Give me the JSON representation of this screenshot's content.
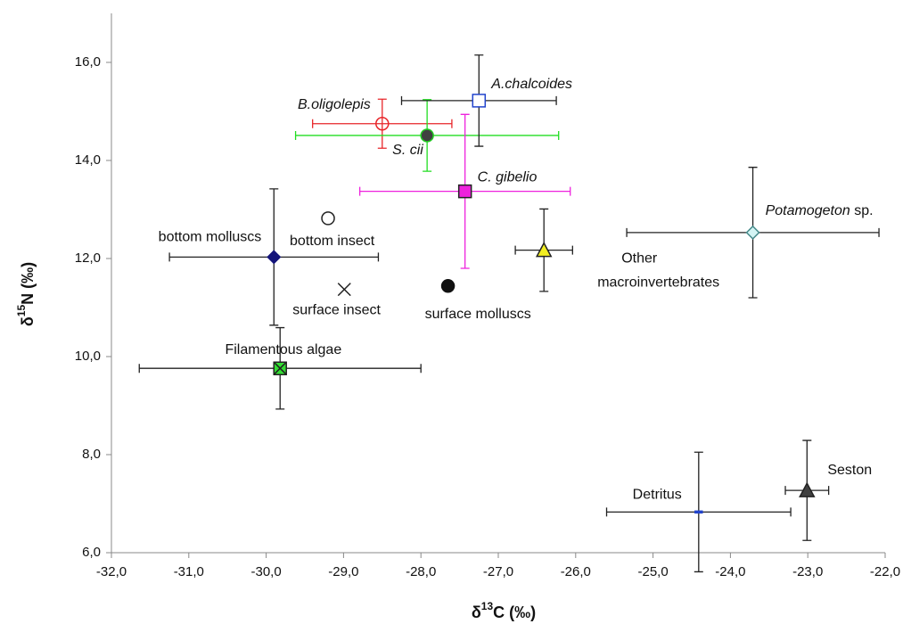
{
  "chart_data": {
    "type": "scatter",
    "x_label": {
      "prefix": "δ",
      "sup": "13",
      "suffix": "C (‰)"
    },
    "y_label": {
      "prefix": "δ",
      "sup": "15",
      "suffix": "N (‰)"
    },
    "xlim": [
      -32,
      -22
    ],
    "ylim": [
      6,
      17
    ],
    "xticks": [
      {
        "value": -32,
        "label": "-32,0"
      },
      {
        "value": -31,
        "label": "-31,0"
      },
      {
        "value": -30,
        "label": "-30,0"
      },
      {
        "value": -29,
        "label": "-29,0"
      },
      {
        "value": -28,
        "label": "-28,0"
      },
      {
        "value": -27,
        "label": "-27,0"
      },
      {
        "value": -26,
        "label": "-26,0"
      },
      {
        "value": -25,
        "label": "-25,0"
      },
      {
        "value": -24,
        "label": "-24,0"
      },
      {
        "value": -23,
        "label": "-23,0"
      },
      {
        "value": -22,
        "label": "-22,0"
      }
    ],
    "yticks": [
      {
        "value": 6,
        "label": "6,0"
      },
      {
        "value": 8,
        "label": "8,0"
      },
      {
        "value": 10,
        "label": "10,0"
      },
      {
        "value": 12,
        "label": "12,0"
      },
      {
        "value": 14,
        "label": "14,0"
      },
      {
        "value": 16,
        "label": "16,0"
      }
    ],
    "grid": false,
    "points": [
      {
        "label": [
          {
            "text": "B.oligolepis",
            "italic": true
          }
        ],
        "x": -28.5,
        "y": 14.75,
        "xerr": 0.9,
        "yerr": 0.5,
        "marker": "circle",
        "fill": "none",
        "stroke": "#e8262a",
        "err_color": "#e8262a"
      },
      {
        "label": [
          {
            "text": "S. cii",
            "italic": true
          }
        ],
        "x": -27.92,
        "y": 14.51,
        "xerr": 1.7,
        "yerr": 0.73,
        "marker": "circle",
        "fill": "#404040",
        "stroke": "#22cc22",
        "err_color": "#22dd22"
      },
      {
        "label": [
          {
            "text": "A.chalcoides",
            "italic": true
          }
        ],
        "x": -27.25,
        "y": 15.22,
        "xerr": 1.0,
        "yerr": 0.93,
        "marker": "square",
        "fill": "#ffffff",
        "stroke": "#2244cc",
        "err_color": "#222222"
      },
      {
        "label": [
          {
            "text": "C. gibelio",
            "italic": true
          }
        ],
        "x": -27.43,
        "y": 13.37,
        "xerr": 1.36,
        "yerr": 1.57,
        "marker": "square",
        "fill": "#ee22dd",
        "stroke": "#222222",
        "err_color": "#ee22dd"
      },
      {
        "label": [
          {
            "text": "Other",
            "italic": false
          },
          {
            "text": "macroinvertebrates",
            "italic": false
          }
        ],
        "x": -26.41,
        "y": 12.17,
        "xerr": 0.37,
        "yerr": 0.84,
        "marker": "triangle",
        "fill": "#f2ee22",
        "stroke": "#222222",
        "err_color": "#222222"
      },
      {
        "label": [
          {
            "text": "Potamogeton",
            "italic": true
          },
          {
            "text": " sp.",
            "italic": false
          }
        ],
        "x": -23.71,
        "y": 12.53,
        "xerr": 1.63,
        "yerr": 1.33,
        "marker": "diamond",
        "fill": "#d4f4f4",
        "stroke": "#448888",
        "err_color": "#222222"
      },
      {
        "label": [
          {
            "text": "bottom molluscs",
            "italic": false
          }
        ],
        "x": -29.9,
        "y": 12.03,
        "xerr": 1.35,
        "yerr": 1.39,
        "marker": "diamond",
        "fill": "#14147a",
        "stroke": "#14147a",
        "err_color": "#222222"
      },
      {
        "label": [
          {
            "text": "bottom insect",
            "italic": false
          }
        ],
        "x": -29.2,
        "y": 12.82,
        "marker": "circle",
        "fill": "#ffffff",
        "stroke": "#222222"
      },
      {
        "label": [
          {
            "text": "surface insect",
            "italic": false
          }
        ],
        "x": -28.99,
        "y": 11.37,
        "marker": "x",
        "fill": "none",
        "stroke": "#222222"
      },
      {
        "label": [
          {
            "text": "surface molluscs",
            "italic": false
          }
        ],
        "x": -27.65,
        "y": 11.44,
        "marker": "circle",
        "fill": "#111111",
        "stroke": "#111111"
      },
      {
        "label": [
          {
            "text": "Filamentous algae",
            "italic": false
          }
        ],
        "x": -29.82,
        "y": 9.76,
        "xerr": 1.82,
        "yerr": 0.83,
        "marker": "square-x",
        "fill": "#33dd33",
        "stroke": "#222222",
        "err_color": "#222222"
      },
      {
        "label": [
          {
            "text": "Detritus",
            "italic": false
          }
        ],
        "x": -24.41,
        "y": 6.83,
        "xerr": 1.19,
        "yerr": 1.22,
        "marker": "dash",
        "fill": "#2244cc",
        "stroke": "#2244cc",
        "err_color": "#222222"
      },
      {
        "label": [
          {
            "text": "Seston",
            "italic": false
          }
        ],
        "x": -23.01,
        "y": 7.27,
        "xerr": 0.28,
        "yerr": 1.02,
        "marker": "triangle",
        "fill": "#404040",
        "stroke": "#222222",
        "err_color": "#222222"
      }
    ]
  }
}
